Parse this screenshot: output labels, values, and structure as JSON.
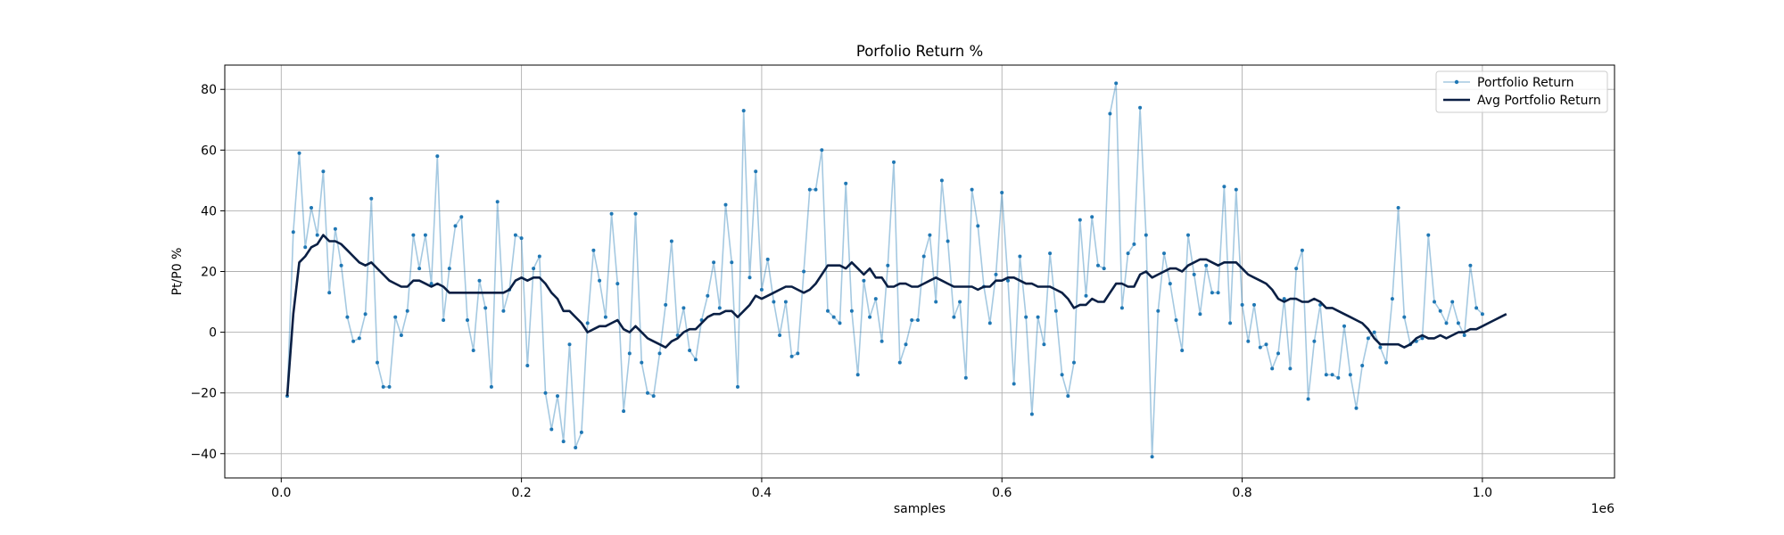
{
  "chart_data": {
    "type": "line",
    "title": "Porfolio Return %",
    "xlabel": "samples",
    "ylabel": "Pt/P0 %",
    "x_offset_label": "1e6",
    "xlim": [
      -0.047,
      1.11
    ],
    "ylim": [
      -48,
      88
    ],
    "x_ticks": [
      0.0,
      0.2,
      0.4,
      0.6,
      0.8,
      1.0
    ],
    "x_tick_labels": [
      "0.0",
      "0.2",
      "0.4",
      "0.6",
      "0.8",
      "1.0"
    ],
    "y_ticks": [
      -40,
      -20,
      0,
      20,
      40,
      60,
      80
    ],
    "y_tick_labels": [
      "−40",
      "−20",
      "0",
      "20",
      "40",
      "60",
      "80"
    ],
    "grid": true,
    "legend_position": "top-right",
    "colors": {
      "portfolio": "#1f77b4",
      "average": "#0a1f44",
      "grid": "#b0b0b0"
    },
    "x_start": 0.005,
    "x_step": 0.005,
    "series": [
      {
        "name": "Portfolio Return",
        "values": [
          -21,
          33,
          59,
          28,
          41,
          32,
          53,
          13,
          34,
          22,
          5,
          -3,
          -2,
          6,
          44,
          -10,
          -18,
          -18,
          5,
          -1,
          7,
          32,
          21,
          32,
          16,
          58,
          4,
          21,
          35,
          38,
          4,
          -6,
          17,
          8,
          -18,
          43,
          7,
          14,
          32,
          31,
          -11,
          21,
          25,
          -20,
          -32,
          -21,
          -36,
          -4,
          -38,
          -33,
          3,
          27,
          17,
          5,
          39,
          16,
          -26,
          -7,
          39,
          -10,
          -20,
          -21,
          -7,
          9,
          30,
          -1,
          8,
          -6,
          -9,
          4,
          12,
          23,
          8,
          42,
          23,
          -18,
          73,
          18,
          53,
          14,
          24,
          10,
          -1,
          10,
          -8,
          -7,
          20,
          47,
          47,
          60,
          7,
          5,
          3,
          49,
          7,
          -14,
          17,
          5,
          11,
          -3,
          22,
          56,
          -10,
          -4,
          4,
          4,
          25,
          32,
          10,
          50,
          30,
          5,
          10,
          -15,
          47,
          35,
          15,
          3,
          19,
          46,
          17,
          -17,
          25,
          5,
          -27,
          5,
          -4,
          26,
          7,
          -14,
          -21,
          -10,
          37,
          12,
          38,
          22,
          21,
          72,
          82,
          8,
          26,
          29,
          74,
          32,
          -41,
          7,
          26,
          16,
          4,
          -6,
          32,
          19,
          6,
          22,
          13,
          13,
          48,
          3,
          47,
          9,
          -3,
          9,
          -5,
          -4,
          -12,
          -7,
          11,
          -12,
          21,
          27,
          -22,
          -3,
          9,
          -14,
          -14,
          -15,
          2,
          -14,
          -25,
          -11,
          -2,
          0,
          -5,
          -10,
          11,
          41,
          5,
          -4,
          -3,
          -2,
          32,
          10,
          7,
          3,
          10,
          3,
          -1,
          22,
          8,
          6
        ]
      },
      {
        "name": "Avg Portfolio Return",
        "values": [
          -21,
          6,
          23,
          25,
          28,
          29,
          32,
          30,
          30,
          29,
          27,
          25,
          23,
          22,
          23,
          21,
          19,
          17,
          16,
          15,
          15,
          17,
          17,
          16,
          15,
          16,
          15,
          13,
          13,
          13,
          13,
          13,
          13,
          13,
          13,
          13,
          13,
          14,
          17,
          18,
          17,
          18,
          18,
          16,
          13,
          11,
          7,
          7,
          5,
          3,
          0,
          1,
          2,
          2,
          3,
          4,
          1,
          0,
          2,
          0,
          -2,
          -3,
          -4,
          -5,
          -3,
          -2,
          0,
          1,
          1,
          3,
          5,
          6,
          6,
          7,
          7,
          5,
          7,
          9,
          12,
          11,
          12,
          13,
          14,
          15,
          15,
          14,
          13,
          14,
          16,
          19,
          22,
          22,
          22,
          21,
          23,
          21,
          19,
          21,
          18,
          18,
          15,
          15,
          16,
          16,
          15,
          15,
          16,
          17,
          18,
          17,
          16,
          15,
          15,
          15,
          15,
          14,
          15,
          15,
          17,
          17,
          18,
          18,
          17,
          16,
          16,
          15,
          15,
          15,
          14,
          13,
          11,
          8,
          9,
          9,
          11,
          10,
          10,
          13,
          16,
          16,
          15,
          15,
          19,
          20,
          18,
          19,
          20,
          21,
          21,
          20,
          22,
          23,
          24,
          24,
          23,
          22,
          23,
          23,
          23,
          21,
          19,
          18,
          17,
          16,
          14,
          11,
          10,
          11,
          11,
          10,
          10,
          11,
          10,
          8,
          8,
          7,
          6,
          5,
          4,
          3,
          1,
          -2,
          -4,
          -4,
          -4,
          -4,
          -5,
          -4,
          -2,
          -1,
          -2,
          -2,
          -1,
          -2,
          -1,
          0,
          0,
          1,
          1,
          2,
          3,
          4,
          5,
          6
        ]
      }
    ]
  }
}
